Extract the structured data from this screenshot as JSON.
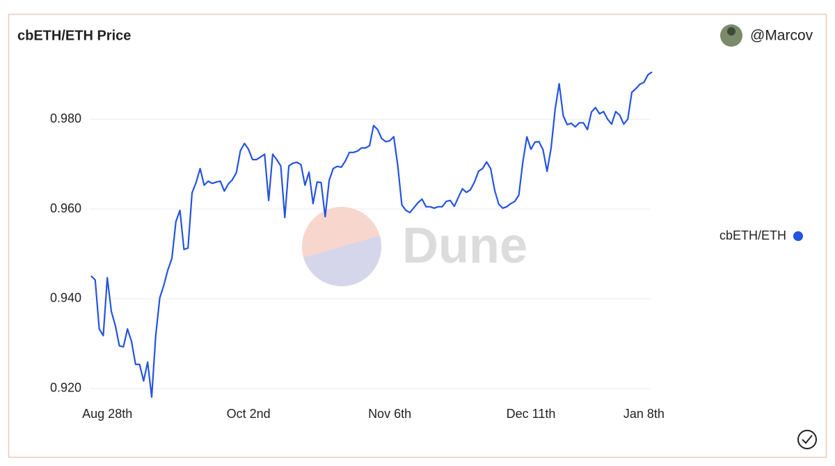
{
  "chart_data": {
    "type": "line",
    "title": "cbETH/ETH Price",
    "author": "@Marcov",
    "watermark": "Dune",
    "x": [
      "Aug 24th",
      "Aug 25th",
      "Aug 26th",
      "Aug 27th",
      "Aug 28th",
      "Aug 29th",
      "Aug 30th",
      "Aug 31st",
      "Sep 1st",
      "Sep 2nd",
      "Sep 3rd",
      "Sep 4th",
      "Sep 5th",
      "Sep 6th",
      "Sep 7th",
      "Sep 8th",
      "Sep 9th",
      "Sep 10th",
      "Sep 11th",
      "Sep 12th",
      "Sep 13th",
      "Sep 14th",
      "Sep 15th",
      "Sep 16th",
      "Sep 17th",
      "Sep 18th",
      "Sep 19th",
      "Sep 20th",
      "Sep 21st",
      "Sep 22nd",
      "Sep 23rd",
      "Sep 24th",
      "Sep 25th",
      "Sep 26th",
      "Sep 27th",
      "Sep 28th",
      "Sep 29th",
      "Sep 30th",
      "Oct 1st",
      "Oct 2nd",
      "Oct 3rd",
      "Oct 4th",
      "Oct 5th",
      "Oct 6th",
      "Oct 7th",
      "Oct 8th",
      "Oct 9th",
      "Oct 10th",
      "Oct 11th",
      "Oct 12th",
      "Oct 13th",
      "Oct 14th",
      "Oct 15th",
      "Oct 16th",
      "Oct 17th",
      "Oct 18th",
      "Oct 19th",
      "Oct 20th",
      "Oct 21st",
      "Oct 22nd",
      "Oct 23rd",
      "Oct 24th",
      "Oct 25th",
      "Oct 26th",
      "Oct 27th",
      "Oct 28th",
      "Oct 29th",
      "Oct 30th",
      "Oct 31st",
      "Nov 1st",
      "Nov 2nd",
      "Nov 3rd",
      "Nov 4th",
      "Nov 5th",
      "Nov 6th",
      "Nov 7th",
      "Nov 8th",
      "Nov 9th",
      "Nov 10th",
      "Nov 11th",
      "Nov 12th",
      "Nov 13th",
      "Nov 14th",
      "Nov 15th",
      "Nov 16th",
      "Nov 17th",
      "Nov 18th",
      "Nov 19th",
      "Nov 20th",
      "Nov 21st",
      "Nov 22nd",
      "Nov 23rd",
      "Nov 24th",
      "Nov 25th",
      "Nov 26th",
      "Nov 27th",
      "Nov 28th",
      "Nov 29th",
      "Nov 30th",
      "Dec 1st",
      "Dec 2nd",
      "Dec 3rd",
      "Dec 4th",
      "Dec 5th",
      "Dec 6th",
      "Dec 7th",
      "Dec 8th",
      "Dec 9th",
      "Dec 10th",
      "Dec 11th",
      "Dec 12th",
      "Dec 13th",
      "Dec 14th",
      "Dec 15th",
      "Dec 16th",
      "Dec 17th",
      "Dec 18th",
      "Dec 19th",
      "Dec 20th",
      "Dec 21st",
      "Dec 22nd",
      "Dec 23rd",
      "Dec 24th",
      "Dec 25th",
      "Dec 26th",
      "Dec 27th",
      "Dec 28th",
      "Dec 29th",
      "Dec 30th",
      "Dec 31st",
      "Jan 1st",
      "Jan 2nd",
      "Jan 3rd",
      "Jan 4th",
      "Jan 5th",
      "Jan 6th",
      "Jan 7th",
      "Jan 8th",
      "Jan 9th",
      "Jan 10th"
    ],
    "series": [
      {
        "name": "cbETH/ETH",
        "color": "#2453e0",
        "values": [
          0.9451,
          0.9442,
          0.9333,
          0.9318,
          0.9447,
          0.9372,
          0.934,
          0.9295,
          0.9293,
          0.9333,
          0.9305,
          0.9254,
          0.9254,
          0.9217,
          0.9259,
          0.9181,
          0.9318,
          0.9402,
          0.943,
          0.9464,
          0.949,
          0.9572,
          0.9597,
          0.951,
          0.9513,
          0.9636,
          0.9659,
          0.969,
          0.9653,
          0.9662,
          0.9657,
          0.966,
          0.9662,
          0.964,
          0.9656,
          0.9665,
          0.9681,
          0.973,
          0.9746,
          0.9733,
          0.971,
          0.971,
          0.9716,
          0.9722,
          0.9619,
          0.9722,
          0.971,
          0.9696,
          0.9581,
          0.9696,
          0.9702,
          0.9704,
          0.9699,
          0.9653,
          0.9682,
          0.9612,
          0.966,
          0.9659,
          0.9583,
          0.9664,
          0.969,
          0.9695,
          0.9693,
          0.9707,
          0.9726,
          0.9726,
          0.9729,
          0.9736,
          0.9736,
          0.9741,
          0.9786,
          0.9777,
          0.9757,
          0.975,
          0.9752,
          0.9761,
          0.9696,
          0.9609,
          0.9597,
          0.9592,
          0.9603,
          0.9614,
          0.9622,
          0.9605,
          0.9605,
          0.9602,
          0.9605,
          0.9605,
          0.9617,
          0.9619,
          0.9606,
          0.9626,
          0.9645,
          0.9637,
          0.9643,
          0.966,
          0.9684,
          0.969,
          0.9705,
          0.969,
          0.9642,
          0.9611,
          0.9602,
          0.9605,
          0.9612,
          0.9617,
          0.9631,
          0.9705,
          0.9761,
          0.9733,
          0.9749,
          0.975,
          0.9732,
          0.9684,
          0.9736,
          0.9822,
          0.9879,
          0.9808,
          0.9788,
          0.9791,
          0.9783,
          0.9792,
          0.9792,
          0.9777,
          0.9816,
          0.9826,
          0.9812,
          0.9817,
          0.98,
          0.9789,
          0.9817,
          0.9809,
          0.9789,
          0.98,
          0.986,
          0.9868,
          0.9878,
          0.9882,
          0.9899,
          0.9905
        ]
      }
    ],
    "xticks": [
      "Aug 28th",
      "Oct 2nd",
      "Nov 6th",
      "Dec 11th",
      "Jan 8th"
    ],
    "ylim": [
      0.9175,
      0.9915
    ],
    "yticks": [
      {
        "value": 0.92,
        "label": "0.920"
      },
      {
        "value": 0.94,
        "label": "0.940"
      },
      {
        "value": 0.96,
        "label": "0.960"
      },
      {
        "value": 0.98,
        "label": "0.980"
      }
    ],
    "grid": true,
    "legend": "right"
  }
}
